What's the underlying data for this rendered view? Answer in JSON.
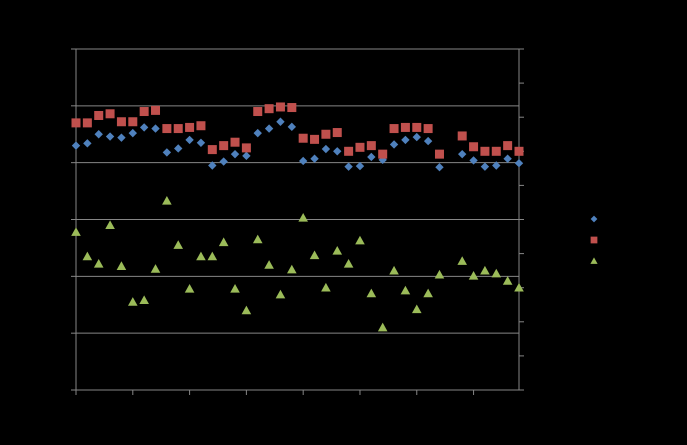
{
  "chart_data": {
    "type": "scatter",
    "title": "",
    "xlabel": "",
    "ylabel": "",
    "xlim": [
      0,
      39
    ],
    "ylim": [
      0,
      6
    ],
    "y2lim": [
      0,
      6
    ],
    "grid": "horizontal",
    "legend_position": "right",
    "x": [
      0,
      1,
      2,
      3,
      4,
      5,
      6,
      7,
      8,
      9,
      10,
      11,
      12,
      13,
      14,
      15,
      16,
      17,
      18,
      19,
      20,
      21,
      22,
      23,
      24,
      25,
      26,
      27,
      28,
      29,
      30,
      31,
      32,
      33,
      34,
      35,
      36,
      37,
      38,
      39
    ],
    "series": [
      {
        "color": "#4f81bd",
        "marker": "diamond",
        "axis": "primary",
        "values": [
          4.3,
          4.34,
          4.5,
          4.46,
          4.44,
          4.52,
          4.62,
          4.6,
          4.18,
          4.25,
          4.4,
          4.35,
          3.95,
          4.02,
          4.15,
          4.12,
          4.52,
          4.6,
          4.72,
          4.63,
          4.03,
          4.07,
          4.24,
          4.2,
          3.93,
          3.94,
          4.1,
          4.05,
          4.32,
          4.4,
          4.45,
          4.38,
          3.92,
          null,
          4.15,
          4.04,
          3.93,
          3.95,
          4.07,
          3.99
        ]
      },
      {
        "color": "#c0504d",
        "marker": "square",
        "axis": "primary",
        "values": [
          4.7,
          4.7,
          4.83,
          4.86,
          4.72,
          4.72,
          4.9,
          4.92,
          4.6,
          4.6,
          4.62,
          4.65,
          4.23,
          4.3,
          4.36,
          4.26,
          4.9,
          4.95,
          4.98,
          4.97,
          4.43,
          4.41,
          4.5,
          4.53,
          4.2,
          4.27,
          4.3,
          4.15,
          4.6,
          4.62,
          4.62,
          4.6,
          4.15,
          null,
          4.47,
          4.28,
          4.2,
          4.2,
          4.3,
          4.2
        ]
      },
      {
        "color": "#9bbb59",
        "marker": "triangle",
        "axis": "secondary",
        "values": [
          2.78,
          2.35,
          2.22,
          2.9,
          2.18,
          1.55,
          1.58,
          2.13,
          3.33,
          2.55,
          1.78,
          2.35,
          2.35,
          2.6,
          1.78,
          1.4,
          2.65,
          2.2,
          1.68,
          2.12,
          3.03,
          2.37,
          1.8,
          2.45,
          2.22,
          2.63,
          1.7,
          1.1,
          2.1,
          1.75,
          1.42,
          1.7,
          2.03,
          null,
          2.27,
          2.01,
          2.1,
          2.05,
          1.92,
          1.8
        ]
      }
    ]
  }
}
